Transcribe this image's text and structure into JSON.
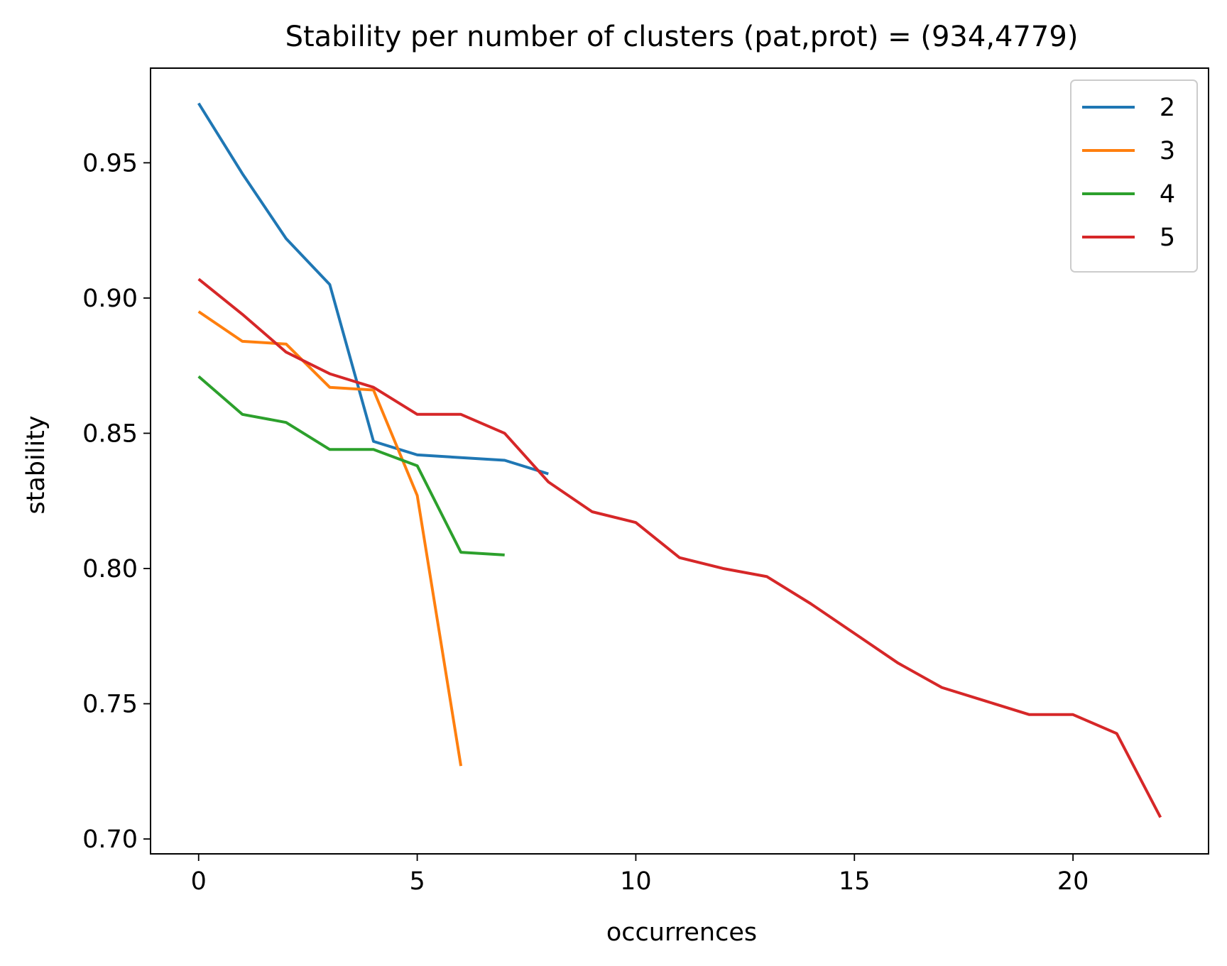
{
  "chart_data": {
    "type": "line",
    "title": "Stability per number of clusters (pat,prot) = (934,4779)",
    "xlabel": "occurrences",
    "ylabel": "stability",
    "xlim": [
      -1.1,
      23.1
    ],
    "ylim": [
      0.6945,
      0.985
    ],
    "xticks": [
      0,
      5,
      10,
      15,
      20
    ],
    "xtick_labels": [
      "0",
      "5",
      "10",
      "15",
      "20"
    ],
    "yticks": [
      0.7,
      0.75,
      0.8,
      0.85,
      0.9,
      0.95
    ],
    "ytick_labels": [
      "0.70",
      "0.75",
      "0.80",
      "0.85",
      "0.90",
      "0.95"
    ],
    "grid": false,
    "legend_position": "top-right",
    "series": [
      {
        "name": "2",
        "color": "#1f77b4",
        "x": [
          0,
          1,
          2,
          3,
          4,
          5,
          6,
          7,
          8
        ],
        "values": [
          0.972,
          0.946,
          0.922,
          0.905,
          0.847,
          0.842,
          0.841,
          0.84,
          0.835
        ]
      },
      {
        "name": "3",
        "color": "#ff7f0e",
        "x": [
          0,
          1,
          2,
          3,
          4,
          5,
          6
        ],
        "values": [
          0.895,
          0.884,
          0.883,
          0.867,
          0.866,
          0.827,
          0.727
        ]
      },
      {
        "name": "4",
        "color": "#2ca02c",
        "x": [
          0,
          1,
          2,
          3,
          4,
          5,
          6,
          7
        ],
        "values": [
          0.871,
          0.857,
          0.854,
          0.844,
          0.844,
          0.838,
          0.806,
          0.805
        ]
      },
      {
        "name": "5",
        "color": "#d62728",
        "x": [
          0,
          1,
          2,
          3,
          4,
          5,
          6,
          7,
          8,
          9,
          10,
          11,
          12,
          13,
          14,
          15,
          16,
          17,
          18,
          19,
          20,
          21,
          22
        ],
        "values": [
          0.907,
          0.894,
          0.88,
          0.872,
          0.867,
          0.857,
          0.857,
          0.85,
          0.832,
          0.821,
          0.817,
          0.804,
          0.8,
          0.797,
          0.787,
          0.776,
          0.765,
          0.756,
          0.751,
          0.746,
          0.746,
          0.739,
          0.708
        ]
      }
    ]
  }
}
